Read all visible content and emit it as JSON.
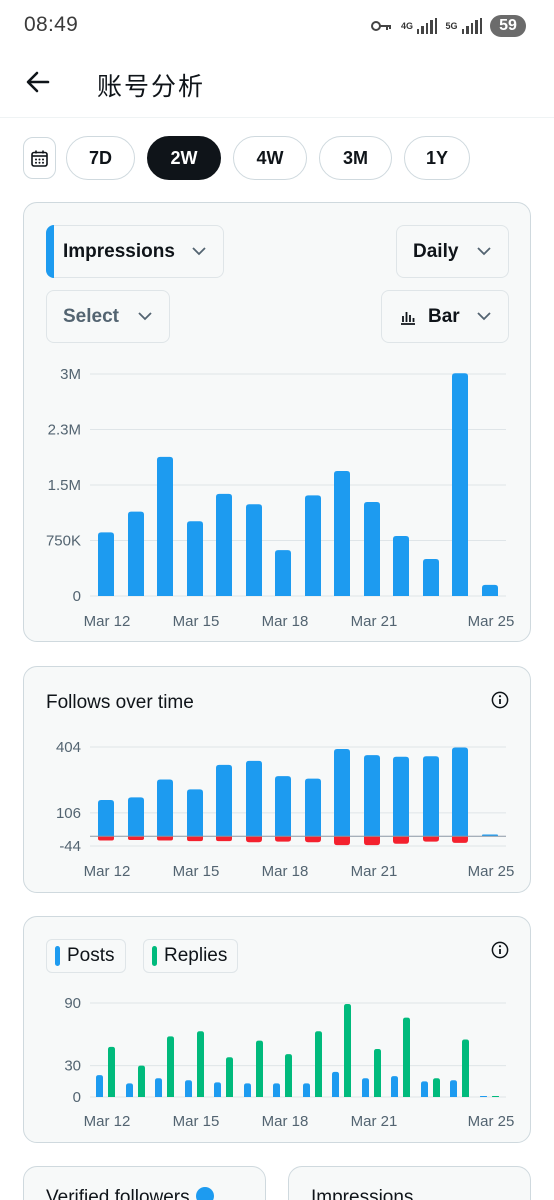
{
  "status_bar": {
    "time": "08:49",
    "net1": "4G",
    "net2": "5G",
    "battery": "59"
  },
  "header": {
    "title": "账号分析"
  },
  "ranges": [
    {
      "label": "7D",
      "active": false
    },
    {
      "label": "2W",
      "active": true
    },
    {
      "label": "4W",
      "active": false
    },
    {
      "label": "3M",
      "active": false
    },
    {
      "label": "1Y",
      "active": false
    }
  ],
  "impressions_card": {
    "metric_label": "Impressions",
    "interval_label": "Daily",
    "compare_label": "Select",
    "chart_type_label": "Bar"
  },
  "follows_card": {
    "title": "Follows over time"
  },
  "posts_card": {
    "legend_posts": "Posts",
    "legend_replies": "Replies"
  },
  "bottom_cards": {
    "left_title": "Verified followers",
    "right_title": "Impressions"
  },
  "colors": {
    "blue": "#1d9bf0",
    "red": "#f4212e",
    "green": "#00ba7c"
  },
  "chart_data": [
    {
      "type": "bar",
      "categories": [
        "Mar 12",
        "Mar 13",
        "Mar 14",
        "Mar 15",
        "Mar 16",
        "Mar 17",
        "Mar 18",
        "Mar 19",
        "Mar 20",
        "Mar 21",
        "Mar 22",
        "Mar 23",
        "Mar 24",
        "Mar 25"
      ],
      "x_tick_labels": [
        "Mar 12",
        "Mar 15",
        "Mar 18",
        "Mar 21",
        "Mar 25"
      ],
      "values": [
        860000,
        1140000,
        1880000,
        1010000,
        1380000,
        1240000,
        620000,
        1360000,
        1690000,
        1270000,
        810000,
        500000,
        3010000,
        150000
      ],
      "y_ticks": [
        0,
        750000,
        1500000,
        2250000,
        3000000
      ],
      "y_tick_labels": [
        "0",
        "750K",
        "1.5M",
        "2.3M",
        "3M"
      ],
      "ylim": [
        0,
        3000000
      ],
      "color": "#1d9bf0"
    },
    {
      "type": "bar",
      "title": "Follows over time",
      "categories": [
        "Mar 12",
        "Mar 13",
        "Mar 14",
        "Mar 15",
        "Mar 16",
        "Mar 17",
        "Mar 18",
        "Mar 19",
        "Mar 20",
        "Mar 21",
        "Mar 22",
        "Mar 23",
        "Mar 24",
        "Mar 25"
      ],
      "x_tick_labels": [
        "Mar 12",
        "Mar 15",
        "Mar 18",
        "Mar 21",
        "Mar 25"
      ],
      "series": [
        {
          "values": [
            164,
            176,
            257,
            212,
            323,
            341,
            272,
            261,
            395,
            367,
            360,
            362,
            402,
            8
          ],
          "color": "#1d9bf0"
        },
        {
          "values": [
            -19,
            -17,
            -19,
            -22,
            -22,
            -27,
            -24,
            -27,
            -40,
            -40,
            -34,
            -24,
            -30,
            0
          ],
          "color": "#f4212e"
        }
      ],
      "y_ticks": [
        -44,
        106,
        404
      ],
      "y_tick_labels": [
        "-44",
        "106",
        "404"
      ],
      "ylim": [
        -44,
        404
      ]
    },
    {
      "type": "bar",
      "categories": [
        "Mar 12",
        "Mar 13",
        "Mar 14",
        "Mar 15",
        "Mar 16",
        "Mar 17",
        "Mar 18",
        "Mar 19",
        "Mar 20",
        "Mar 21",
        "Mar 22",
        "Mar 23",
        "Mar 24",
        "Mar 25"
      ],
      "x_tick_labels": [
        "Mar 12",
        "Mar 15",
        "Mar 18",
        "Mar 21",
        "Mar 25"
      ],
      "series": [
        {
          "name": "Posts",
          "values": [
            21,
            13,
            18,
            16,
            14,
            13,
            13,
            13,
            24,
            18,
            20,
            15,
            16,
            0
          ],
          "color": "#1d9bf0"
        },
        {
          "name": "Replies",
          "values": [
            48,
            30,
            58,
            63,
            38,
            54,
            41,
            63,
            89,
            46,
            76,
            18,
            55,
            1
          ],
          "color": "#00ba7c"
        }
      ],
      "y_ticks": [
        0,
        30,
        90
      ],
      "y_tick_labels": [
        "0",
        "30",
        "90"
      ],
      "ylim": [
        0,
        90
      ]
    }
  ]
}
